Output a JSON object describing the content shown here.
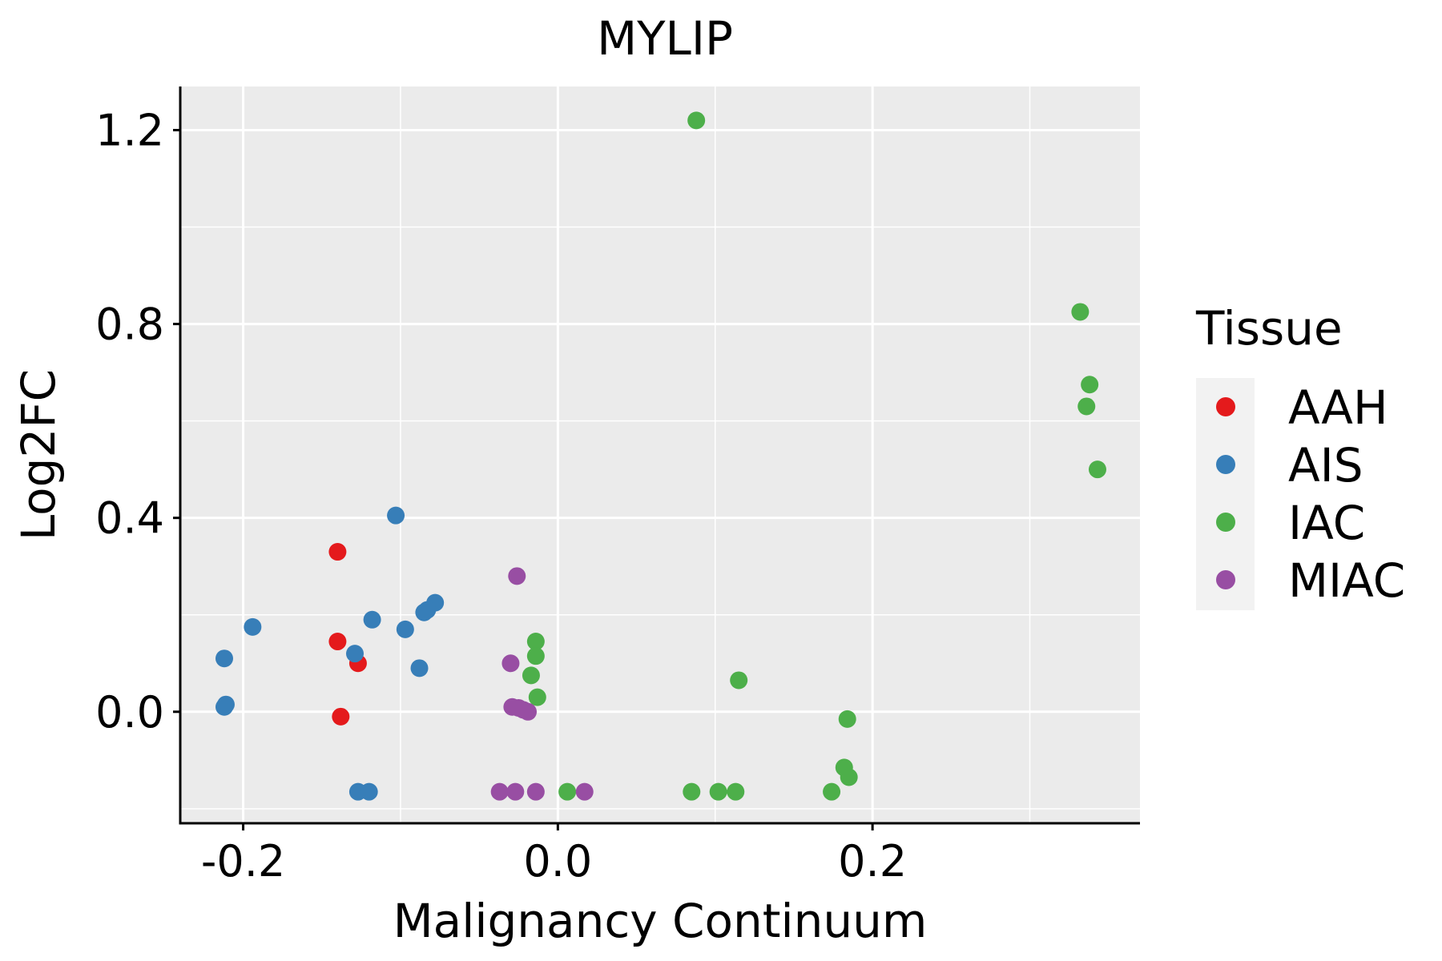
{
  "chart_data": {
    "type": "scatter",
    "title": "MYLIP",
    "xlabel": "Malignancy Continuum",
    "ylabel": "Log2FC",
    "xlim": [
      -0.24,
      0.37
    ],
    "ylim": [
      -0.23,
      1.29
    ],
    "x_ticks": [
      -0.2,
      0.0,
      0.2
    ],
    "x_tick_labels": [
      "-0.2",
      "0.0",
      "0.2"
    ],
    "y_ticks": [
      0.0,
      0.4,
      0.8,
      1.2
    ],
    "y_tick_labels": [
      "0.0",
      "0.4",
      "0.8",
      "1.2"
    ],
    "grid": true,
    "legend": {
      "title": "Tissue",
      "position": "right",
      "entries": [
        {
          "name": "AAH",
          "color": "#E41A1C"
        },
        {
          "name": "AIS",
          "color": "#377EB8"
        },
        {
          "name": "IAC",
          "color": "#4DAF4A"
        },
        {
          "name": "MIAC",
          "color": "#984EA3"
        }
      ]
    },
    "series": [
      {
        "name": "AAH",
        "color": "#E41A1C",
        "points": [
          {
            "x": -0.14,
            "y": 0.33
          },
          {
            "x": -0.14,
            "y": 0.145
          },
          {
            "x": -0.127,
            "y": 0.1
          },
          {
            "x": -0.138,
            "y": -0.01
          }
        ]
      },
      {
        "name": "AIS",
        "color": "#377EB8",
        "points": [
          {
            "x": -0.103,
            "y": 0.405
          },
          {
            "x": -0.078,
            "y": 0.225
          },
          {
            "x": -0.083,
            "y": 0.21
          },
          {
            "x": -0.085,
            "y": 0.205
          },
          {
            "x": -0.118,
            "y": 0.19
          },
          {
            "x": -0.194,
            "y": 0.175
          },
          {
            "x": -0.097,
            "y": 0.17
          },
          {
            "x": -0.129,
            "y": 0.12
          },
          {
            "x": -0.212,
            "y": 0.11
          },
          {
            "x": -0.088,
            "y": 0.09
          },
          {
            "x": -0.211,
            "y": 0.015
          },
          {
            "x": -0.212,
            "y": 0.01
          },
          {
            "x": -0.127,
            "y": -0.165
          },
          {
            "x": -0.12,
            "y": -0.165
          }
        ]
      },
      {
        "name": "IAC",
        "color": "#4DAF4A",
        "points": [
          {
            "x": 0.088,
            "y": 1.22
          },
          {
            "x": 0.332,
            "y": 0.825
          },
          {
            "x": 0.338,
            "y": 0.675
          },
          {
            "x": 0.336,
            "y": 0.63
          },
          {
            "x": 0.343,
            "y": 0.5
          },
          {
            "x": -0.014,
            "y": 0.145
          },
          {
            "x": -0.014,
            "y": 0.115
          },
          {
            "x": -0.017,
            "y": 0.075
          },
          {
            "x": 0.115,
            "y": 0.065
          },
          {
            "x": -0.013,
            "y": 0.03
          },
          {
            "x": 0.184,
            "y": -0.015
          },
          {
            "x": 0.182,
            "y": -0.115
          },
          {
            "x": 0.185,
            "y": -0.135
          },
          {
            "x": 0.006,
            "y": -0.165
          },
          {
            "x": 0.085,
            "y": -0.165
          },
          {
            "x": 0.102,
            "y": -0.165
          },
          {
            "x": 0.113,
            "y": -0.165
          },
          {
            "x": 0.174,
            "y": -0.165
          }
        ]
      },
      {
        "name": "MIAC",
        "color": "#984EA3",
        "points": [
          {
            "x": -0.026,
            "y": 0.28
          },
          {
            "x": -0.03,
            "y": 0.1
          },
          {
            "x": -0.029,
            "y": 0.01
          },
          {
            "x": -0.025,
            "y": 0.008
          },
          {
            "x": -0.022,
            "y": 0.004
          },
          {
            "x": -0.019,
            "y": 0.0
          },
          {
            "x": -0.037,
            "y": -0.165
          },
          {
            "x": -0.027,
            "y": -0.165
          },
          {
            "x": -0.014,
            "y": -0.165
          },
          {
            "x": 0.017,
            "y": -0.165
          }
        ]
      }
    ]
  }
}
